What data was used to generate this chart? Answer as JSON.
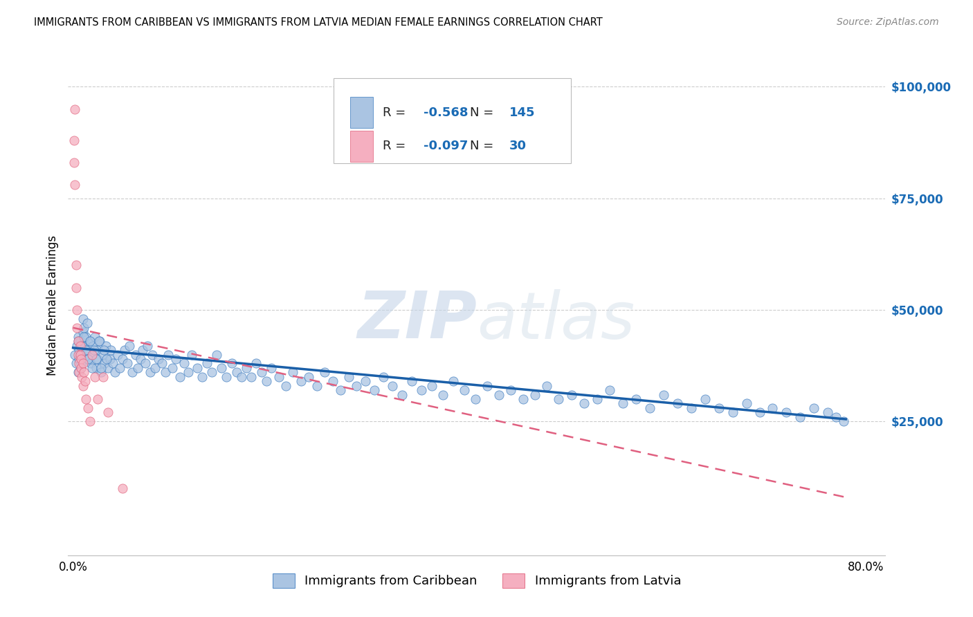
{
  "title": "IMMIGRANTS FROM CARIBBEAN VS IMMIGRANTS FROM LATVIA MEDIAN FEMALE EARNINGS CORRELATION CHART",
  "source": "Source: ZipAtlas.com",
  "ylabel": "Median Female Earnings",
  "y_ticks": [
    0,
    25000,
    50000,
    75000,
    100000
  ],
  "y_tick_labels": [
    "",
    "$25,000",
    "$50,000",
    "$75,000",
    "$100,000"
  ],
  "blue_R": "-0.568",
  "blue_N": "145",
  "pink_R": "-0.097",
  "pink_N": "30",
  "blue_color": "#aac4e2",
  "pink_color": "#f5afc0",
  "blue_edge_color": "#3a7abf",
  "pink_edge_color": "#e0607a",
  "blue_line_color": "#1a5fa8",
  "pink_line_color": "#e06080",
  "watermark_zip": "ZIP",
  "watermark_atlas": "atlas",
  "legend_label_blue": "Immigrants from Caribbean",
  "legend_label_pink": "Immigrants from Latvia",
  "blue_scatter_x": [
    0.002,
    0.003,
    0.004,
    0.005,
    0.005,
    0.006,
    0.006,
    0.007,
    0.008,
    0.009,
    0.01,
    0.01,
    0.011,
    0.012,
    0.013,
    0.014,
    0.015,
    0.016,
    0.017,
    0.018,
    0.019,
    0.02,
    0.022,
    0.023,
    0.024,
    0.025,
    0.027,
    0.028,
    0.03,
    0.032,
    0.033,
    0.035,
    0.037,
    0.038,
    0.04,
    0.042,
    0.045,
    0.047,
    0.05,
    0.052,
    0.055,
    0.057,
    0.06,
    0.063,
    0.065,
    0.068,
    0.07,
    0.073,
    0.075,
    0.078,
    0.08,
    0.083,
    0.086,
    0.09,
    0.093,
    0.096,
    0.1,
    0.104,
    0.108,
    0.112,
    0.116,
    0.12,
    0.125,
    0.13,
    0.135,
    0.14,
    0.145,
    0.15,
    0.155,
    0.16,
    0.165,
    0.17,
    0.175,
    0.18,
    0.185,
    0.19,
    0.195,
    0.2,
    0.208,
    0.215,
    0.222,
    0.23,
    0.238,
    0.246,
    0.254,
    0.262,
    0.27,
    0.278,
    0.286,
    0.295,
    0.304,
    0.313,
    0.322,
    0.332,
    0.342,
    0.352,
    0.362,
    0.373,
    0.384,
    0.395,
    0.406,
    0.418,
    0.43,
    0.442,
    0.454,
    0.466,
    0.478,
    0.49,
    0.503,
    0.516,
    0.529,
    0.542,
    0.555,
    0.568,
    0.582,
    0.596,
    0.61,
    0.624,
    0.638,
    0.652,
    0.666,
    0.68,
    0.693,
    0.706,
    0.72,
    0.734,
    0.748,
    0.762,
    0.77,
    0.778,
    0.005,
    0.007,
    0.008,
    0.009,
    0.011,
    0.013,
    0.015,
    0.017,
    0.019,
    0.021,
    0.023,
    0.026,
    0.028,
    0.031,
    0.034
  ],
  "blue_scatter_y": [
    40000,
    38000,
    42000,
    36000,
    44000,
    39000,
    41000,
    43000,
    37000,
    40000,
    48000,
    45000,
    46000,
    42000,
    44000,
    47000,
    41000,
    39000,
    43000,
    38000,
    40000,
    42000,
    44000,
    37000,
    41000,
    39000,
    43000,
    36000,
    40000,
    38000,
    42000,
    37000,
    39000,
    41000,
    38000,
    36000,
    40000,
    37000,
    39000,
    41000,
    38000,
    42000,
    36000,
    40000,
    37000,
    39000,
    41000,
    38000,
    42000,
    36000,
    40000,
    37000,
    39000,
    38000,
    36000,
    40000,
    37000,
    39000,
    35000,
    38000,
    36000,
    40000,
    37000,
    35000,
    38000,
    36000,
    40000,
    37000,
    35000,
    38000,
    36000,
    35000,
    37000,
    35000,
    38000,
    36000,
    34000,
    37000,
    35000,
    33000,
    36000,
    34000,
    35000,
    33000,
    36000,
    34000,
    32000,
    35000,
    33000,
    34000,
    32000,
    35000,
    33000,
    31000,
    34000,
    32000,
    33000,
    31000,
    34000,
    32000,
    30000,
    33000,
    31000,
    32000,
    30000,
    31000,
    33000,
    30000,
    31000,
    29000,
    30000,
    32000,
    29000,
    30000,
    28000,
    31000,
    29000,
    28000,
    30000,
    28000,
    27000,
    29000,
    27000,
    28000,
    27000,
    26000,
    28000,
    27000,
    26000,
    25000,
    43000,
    40000,
    38000,
    42000,
    44000,
    41000,
    39000,
    43000,
    37000,
    41000,
    39000,
    43000,
    37000,
    41000,
    39000
  ],
  "pink_scatter_x": [
    0.001,
    0.001,
    0.002,
    0.002,
    0.003,
    0.003,
    0.004,
    0.004,
    0.005,
    0.005,
    0.006,
    0.006,
    0.007,
    0.007,
    0.008,
    0.008,
    0.009,
    0.01,
    0.01,
    0.011,
    0.012,
    0.013,
    0.015,
    0.017,
    0.019,
    0.022,
    0.025,
    0.03,
    0.035,
    0.05
  ],
  "pink_scatter_y": [
    88000,
    83000,
    95000,
    78000,
    60000,
    55000,
    50000,
    46000,
    43000,
    40000,
    38000,
    36000,
    40000,
    42000,
    39000,
    37000,
    35000,
    38000,
    33000,
    36000,
    34000,
    30000,
    28000,
    25000,
    40000,
    35000,
    30000,
    35000,
    27000,
    10000
  ],
  "blue_trend_x": [
    0.0,
    0.78
  ],
  "blue_trend_y": [
    41500,
    25500
  ],
  "pink_trend_x": [
    0.0,
    0.78
  ],
  "pink_trend_y": [
    46000,
    8000
  ],
  "xlim": [
    -0.005,
    0.82
  ],
  "ylim": [
    -5000,
    107000
  ],
  "x_axis_ticks": [
    0.0,
    0.1,
    0.2,
    0.3,
    0.4,
    0.5,
    0.6,
    0.7,
    0.8
  ],
  "x_axis_labels": [
    "0.0%",
    "",
    "",
    "",
    "",
    "",
    "",
    "",
    "80.0%"
  ]
}
